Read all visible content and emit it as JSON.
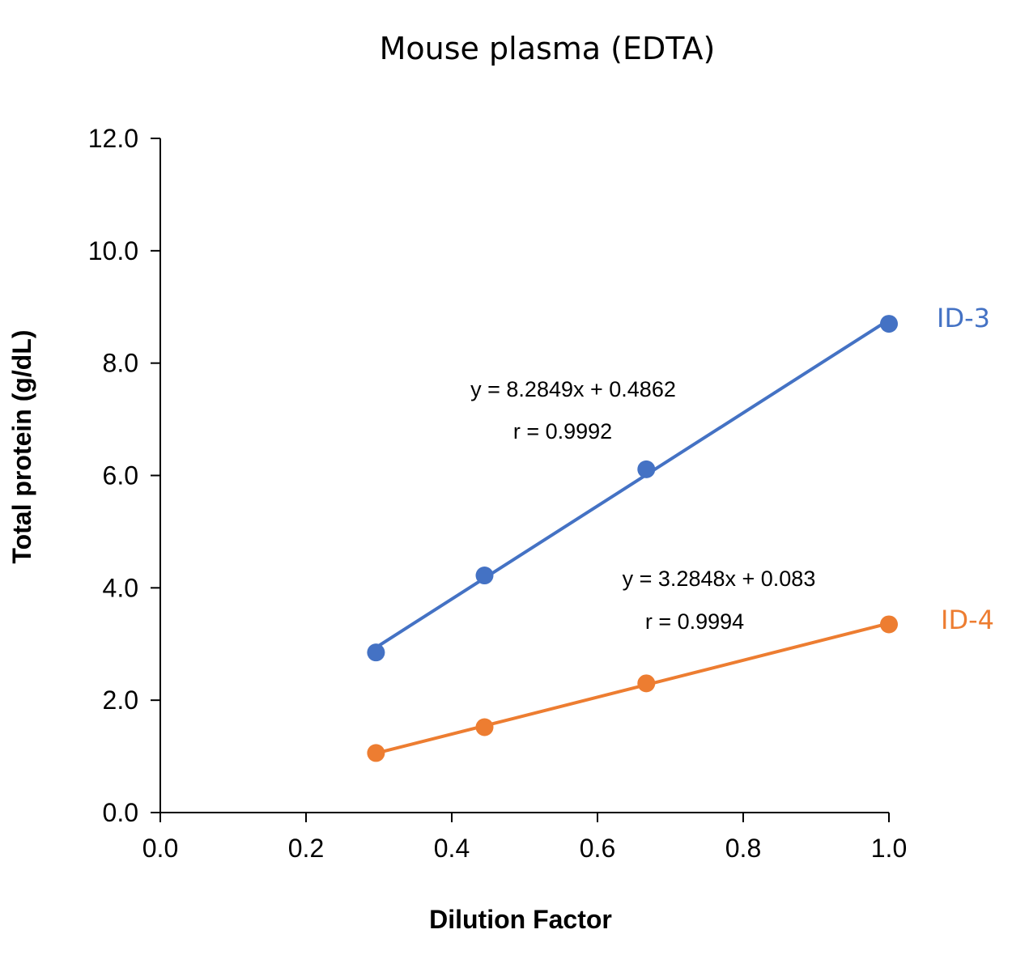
{
  "chart_data": {
    "type": "scatter",
    "title": "Mouse plasma (EDTA)",
    "xlabel": "Dilution Factor",
    "ylabel": "Total protein (g/dL)",
    "xlim": [
      0.0,
      1.0
    ],
    "ylim": [
      0.0,
      12.0
    ],
    "x_ticks": [
      "0.0",
      "0.2",
      "0.4",
      "0.6",
      "0.8",
      "1.0"
    ],
    "y_ticks": [
      "0.0",
      "2.0",
      "4.0",
      "6.0",
      "8.0",
      "10.0",
      "12.0"
    ],
    "grid": false,
    "series": [
      {
        "name": "ID-3",
        "color": "#4472C4",
        "x": [
          0.296,
          0.445,
          0.667,
          1.0
        ],
        "y": [
          2.85,
          4.22,
          6.11,
          8.7
        ],
        "equation": "y = 8.2849x + 0.4862",
        "r_text": "r = 0.9992",
        "fit": {
          "slope": 8.2849,
          "intercept": 0.4862
        }
      },
      {
        "name": "ID-4",
        "color": "#ED7D31",
        "x": [
          0.296,
          0.445,
          0.667,
          1.0
        ],
        "y": [
          1.06,
          1.52,
          2.3,
          3.35
        ],
        "equation": "y = 3.2848x + 0.083",
        "r_text": "r = 0.9994",
        "fit": {
          "slope": 3.2848,
          "intercept": 0.083
        }
      }
    ]
  }
}
